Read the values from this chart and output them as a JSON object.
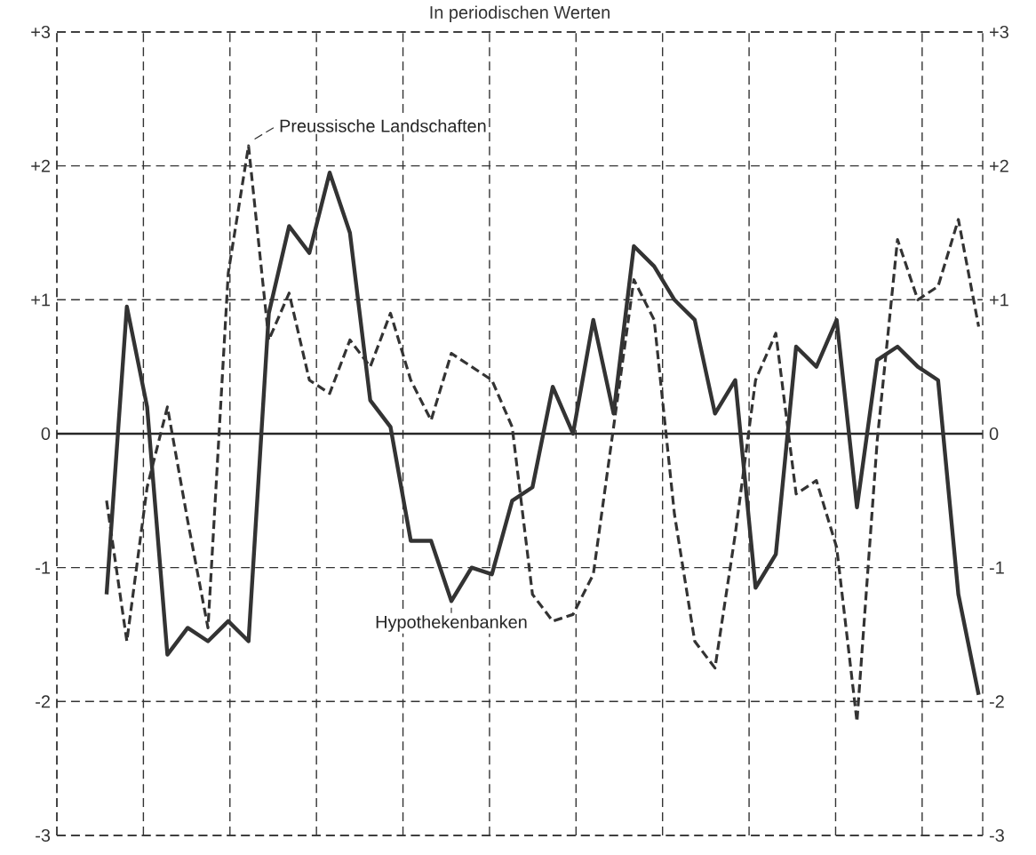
{
  "chart_data": {
    "type": "line",
    "title": "In periodischen Werten",
    "categories": [
      null,
      null,
      null,
      null,
      null,
      null,
      null,
      null,
      null,
      null,
      null,
      null,
      null,
      null,
      null,
      null,
      null,
      null,
      null,
      null,
      null,
      null,
      null,
      null,
      null,
      null,
      null,
      null,
      null,
      null,
      null,
      null,
      null,
      null,
      null,
      null,
      null,
      null,
      null,
      null,
      null,
      null,
      null,
      null
    ],
    "ylim": [
      -3,
      3
    ],
    "yticks": [
      {
        "value": -3,
        "label": "-3"
      },
      {
        "value": -2,
        "label": "-2"
      },
      {
        "value": -1,
        "label": "-1"
      },
      {
        "value": 0,
        "label": "0"
      },
      {
        "value": 1,
        "label": "+1"
      },
      {
        "value": 2,
        "label": "+2"
      },
      {
        "value": 3,
        "label": "+3"
      }
    ],
    "y2lim": [
      -3,
      3
    ],
    "y2ticks": [
      {
        "value": -3,
        "label": "-3"
      },
      {
        "value": -2,
        "label": "-2"
      },
      {
        "value": -1,
        "label": "-1"
      },
      {
        "value": 0,
        "label": "0"
      },
      {
        "value": 1,
        "label": "+1"
      },
      {
        "value": 2,
        "label": "+2"
      },
      {
        "value": 3,
        "label": "+3"
      }
    ],
    "grid": true,
    "marker": "none",
    "ref_lines": [
      {
        "axis": "y",
        "value": 0
      }
    ],
    "series": [
      {
        "name": "Preussische Landschaften",
        "color": "#333333",
        "line_style": "dashed",
        "values": [
          -0.5,
          -1.55,
          -0.4,
          0.2,
          -0.65,
          -1.45,
          1.2,
          2.15,
          0.7,
          1.05,
          0.4,
          0.3,
          0.7,
          0.5,
          0.9,
          0.4,
          0.1,
          0.6,
          0.5,
          0.4,
          0.05,
          -1.2,
          -1.4,
          -1.35,
          -1.05,
          0.05,
          1.15,
          0.85,
          -0.6,
          -1.55,
          -1.75,
          -0.75,
          0.4,
          0.75,
          -0.45,
          -0.35,
          -0.85,
          -2.15,
          -0.05,
          1.45,
          1.0,
          1.1,
          1.6,
          0.8
        ]
      },
      {
        "name": "Hypothekenbanken",
        "color": "#333333",
        "line_style": "solid",
        "values": [
          -1.2,
          0.95,
          0.2,
          -1.65,
          -1.45,
          -1.55,
          -1.4,
          -1.55,
          0.9,
          1.55,
          1.35,
          1.95,
          1.5,
          0.25,
          0.05,
          -0.8,
          -0.8,
          -1.25,
          -1.0,
          -1.05,
          -0.5,
          -0.4,
          0.35,
          0.0,
          0.85,
          0.15,
          1.4,
          1.25,
          1.0,
          0.85,
          0.15,
          0.4,
          -1.15,
          -0.9,
          0.65,
          0.5,
          0.85,
          -0.55,
          0.55,
          0.65,
          0.5,
          0.4,
          -1.2,
          -1.95
        ]
      }
    ]
  }
}
